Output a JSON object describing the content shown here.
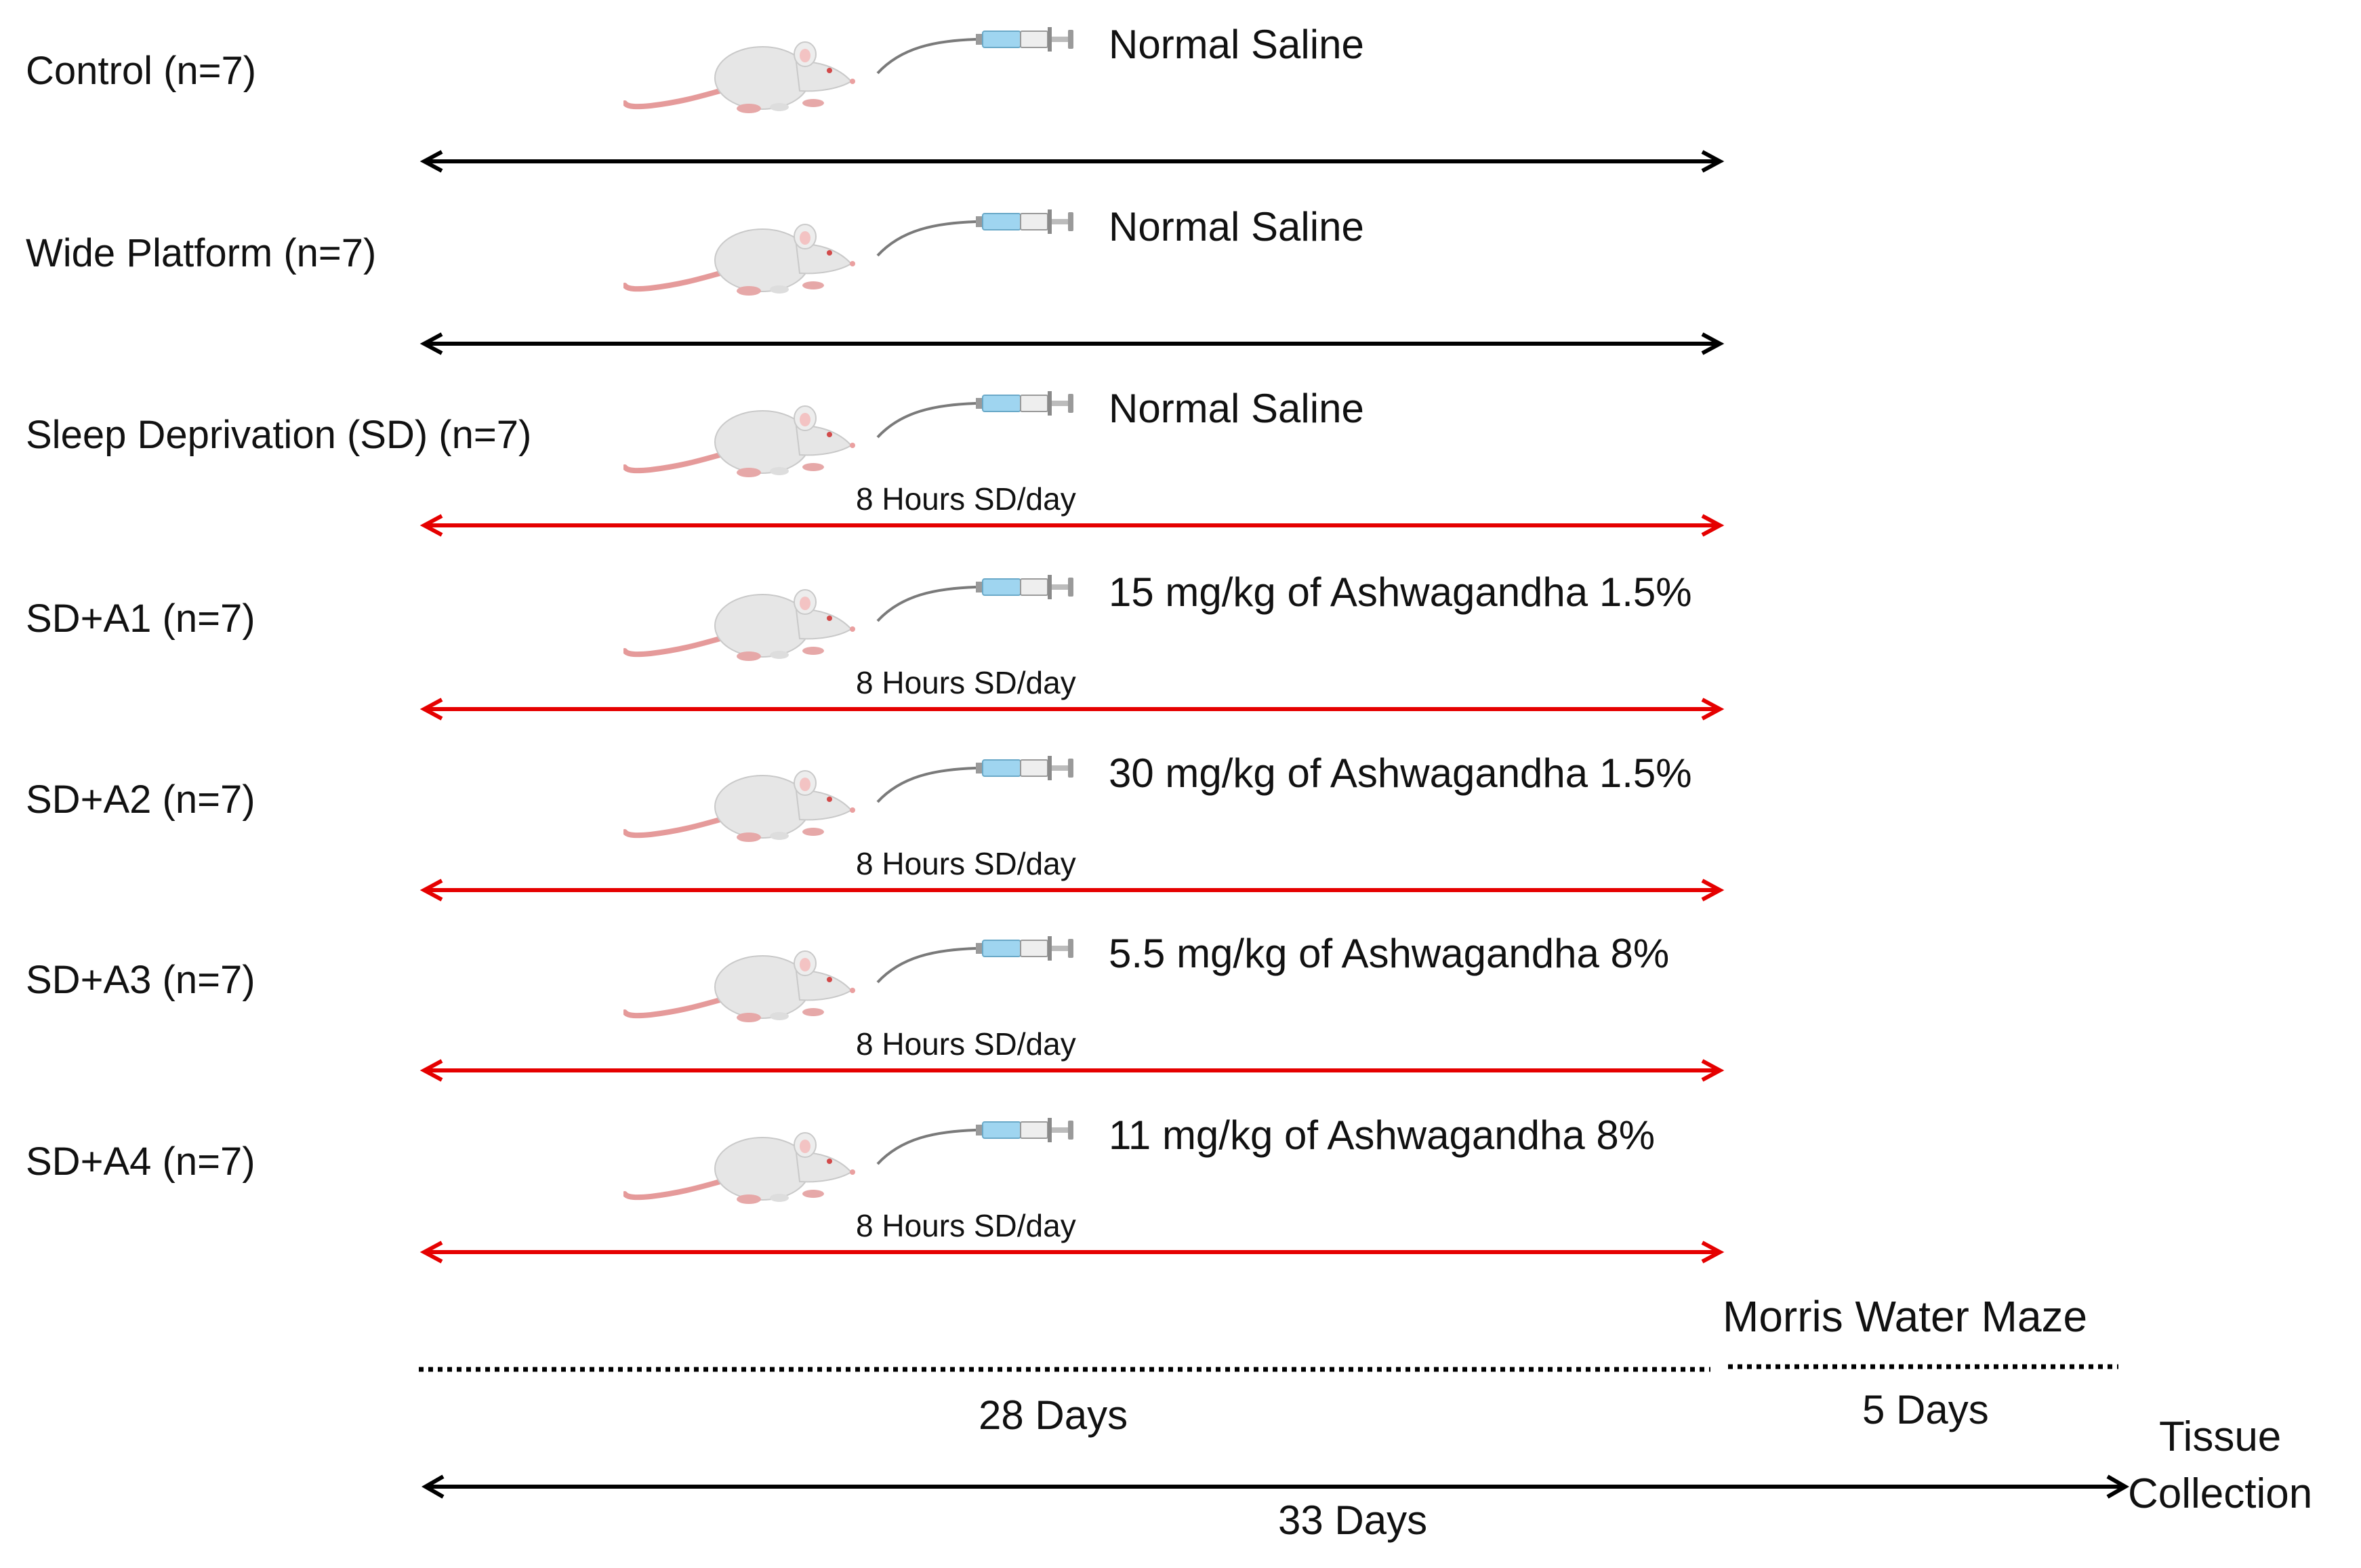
{
  "colors": {
    "black": "#000000",
    "red": "#e50000"
  },
  "groups": [
    {
      "name": "Control (n=7)",
      "treatment": "Normal Saline",
      "arrow": "black",
      "sd_label": ""
    },
    {
      "name": "Wide Platform (n=7)",
      "treatment": "Normal Saline",
      "arrow": "black",
      "sd_label": ""
    },
    {
      "name": "Sleep Deprivation (SD) (n=7)",
      "treatment": "Normal Saline",
      "arrow": "red",
      "sd_label": "8 Hours SD/day"
    },
    {
      "name": "SD+A1 (n=7)",
      "treatment": "15 mg/kg of Ashwagandha 1.5%",
      "arrow": "red",
      "sd_label": "8 Hours SD/day"
    },
    {
      "name": "SD+A2 (n=7)",
      "treatment": "30 mg/kg of Ashwagandha 1.5%",
      "arrow": "red",
      "sd_label": "8 Hours SD/day"
    },
    {
      "name": "SD+A3 (n=7)",
      "treatment": "5.5 mg/kg of Ashwagandha 8%",
      "arrow": "red",
      "sd_label": "8 Hours SD/day"
    },
    {
      "name": "SD+A4 (n=7)",
      "treatment": "11 mg/kg of Ashwagandha 8%",
      "arrow": "red",
      "sd_label": "8 Hours SD/day"
    }
  ],
  "timeline": {
    "phase1": "28 Days",
    "phase2_title": "Morris Water Maze",
    "phase2": "5 Days",
    "total": "33 Days",
    "end_line1": "Tissue",
    "end_line2": "Collection"
  },
  "icons": {
    "animal": "rat-icon",
    "injection": "syringe-icon"
  }
}
